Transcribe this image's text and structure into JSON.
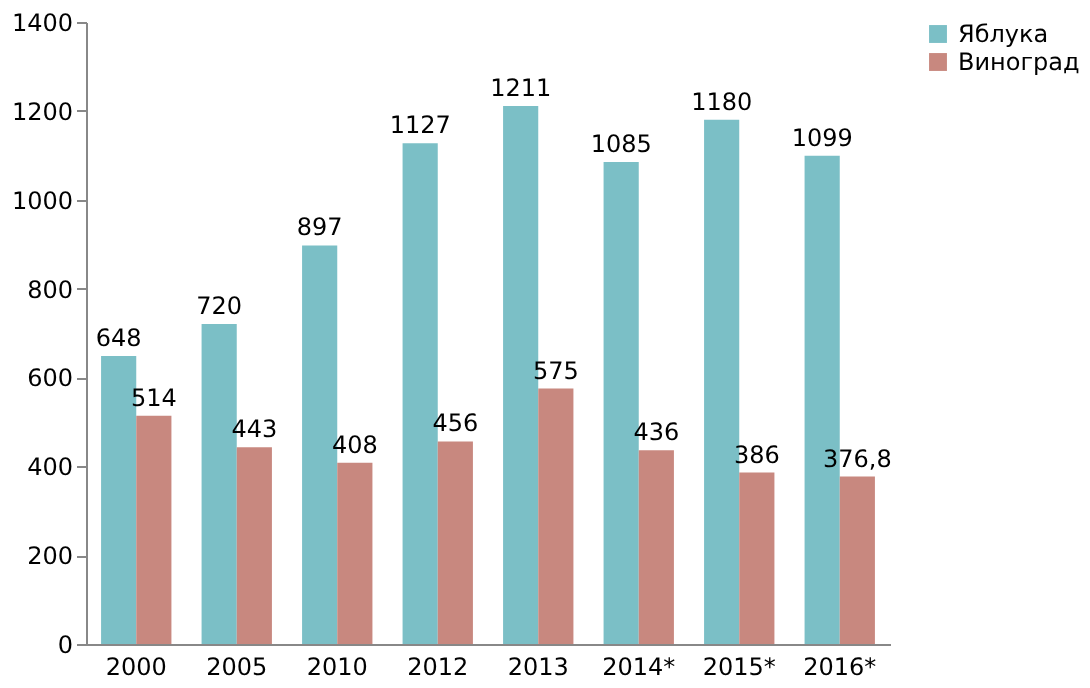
{
  "chart_data": {
    "type": "bar",
    "categories": [
      "2000",
      "2005",
      "2010",
      "2012",
      "2013",
      "2014*",
      "2015*",
      "2016*"
    ],
    "series": [
      {
        "name": "Яблука",
        "color": "#7bbfc6",
        "values": [
          648,
          720,
          897,
          1127,
          1211,
          1085,
          1180,
          1099
        ],
        "value_labels": [
          "648",
          "720",
          "897",
          "1127",
          "1211",
          "1085",
          "1180",
          "1099"
        ]
      },
      {
        "name": "Виноград",
        "color": "#c8887f",
        "values": [
          514,
          443,
          408,
          456,
          575,
          436,
          386,
          376.8
        ],
        "value_labels": [
          "514",
          "443",
          "408",
          "456",
          "575",
          "436",
          "386",
          "376,8"
        ]
      }
    ],
    "ylim": [
      0,
      1400
    ],
    "yticks": [
      0,
      200,
      400,
      600,
      800,
      1000,
      1200,
      1400
    ],
    "grid": false,
    "legend": "right"
  }
}
